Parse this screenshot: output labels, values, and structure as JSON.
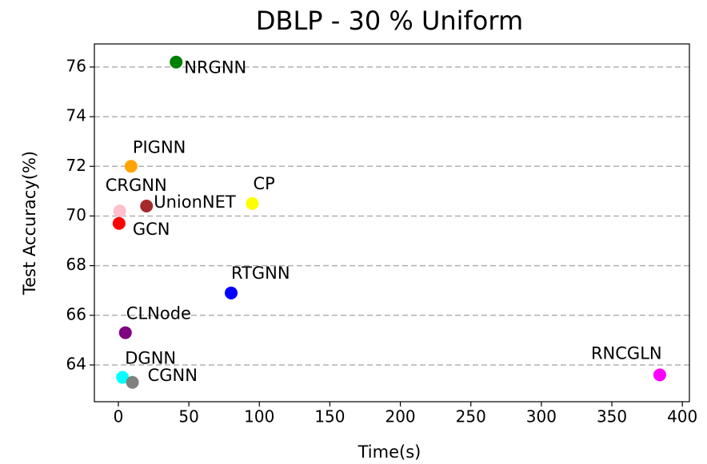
{
  "chart_data": {
    "type": "scatter",
    "title": "DBLP - 30 % Uniform",
    "x_label": "Time(s)",
    "y_label": "Test Accuracy(%)",
    "xlim": [
      -17,
      405
    ],
    "ylim": [
      62.52,
      76.93
    ],
    "xticks": [
      0,
      50,
      100,
      150,
      200,
      250,
      300,
      350,
      400
    ],
    "yticks": [
      64,
      66,
      68,
      70,
      72,
      74,
      76
    ],
    "grid": "y",
    "series": [
      {
        "name": "NRGNN",
        "color": "#008000",
        "x": [
          41
        ],
        "values": [
          76.2
        ]
      },
      {
        "name": "PIGNN",
        "color": "#ffa500",
        "x": [
          9
        ],
        "values": [
          72.0
        ]
      },
      {
        "name": "CRGNN",
        "color": "#ffc0cb",
        "x": [
          1
        ],
        "values": [
          70.2
        ]
      },
      {
        "name": "UnionNET",
        "color": "#a52a2a",
        "x": [
          20
        ],
        "values": [
          70.4
        ]
      },
      {
        "name": "CP",
        "color": "#ffff00",
        "x": [
          95
        ],
        "values": [
          70.5
        ]
      },
      {
        "name": "GCN",
        "color": "#ff0000",
        "x": [
          0.5
        ],
        "values": [
          69.7
        ]
      },
      {
        "name": "RTGNN",
        "color": "#0000ff",
        "x": [
          80
        ],
        "values": [
          66.9
        ]
      },
      {
        "name": "CLNode",
        "color": "#800080",
        "x": [
          5
        ],
        "values": [
          65.3
        ]
      },
      {
        "name": "DGNN",
        "color": "#00ffff",
        "x": [
          3
        ],
        "values": [
          63.5
        ]
      },
      {
        "name": "CGNN",
        "color": "#808080",
        "x": [
          10
        ],
        "values": [
          63.3
        ]
      },
      {
        "name": "RNCGLN",
        "color": "#ff00ff",
        "x": [
          384
        ],
        "values": [
          63.6
        ]
      }
    ]
  }
}
